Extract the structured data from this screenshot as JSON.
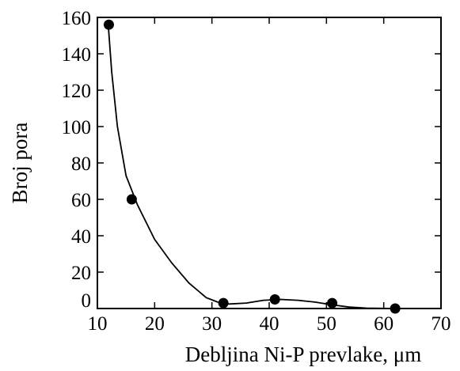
{
  "chart_data": {
    "type": "scatter",
    "title": "",
    "xlabel": "Debljina Ni-P prevlake, μm",
    "ylabel": "Broj pora",
    "xlim": [
      10,
      70
    ],
    "ylim": [
      0,
      160
    ],
    "x_ticks": [
      "10",
      "20",
      "30",
      "40",
      "50",
      "60",
      "70"
    ],
    "y_ticks": [
      "0",
      "20",
      "40",
      "60",
      "80",
      "100",
      "120",
      "140",
      "160"
    ],
    "grid": false,
    "legend": "none",
    "series": [
      {
        "values": [
          {
            "x": 12,
            "y": 156
          },
          {
            "x": 16,
            "y": 60
          },
          {
            "x": 32,
            "y": 3
          },
          {
            "x": 41,
            "y": 5
          },
          {
            "x": 51,
            "y": 3
          },
          {
            "x": 62,
            "y": 0
          }
        ]
      }
    ],
    "trend_curve": [
      {
        "x": 11.9,
        "y": 156
      },
      {
        "x": 12.5,
        "y": 130
      },
      {
        "x": 13.5,
        "y": 100
      },
      {
        "x": 15,
        "y": 73
      },
      {
        "x": 17,
        "y": 57
      },
      {
        "x": 20,
        "y": 38
      },
      {
        "x": 23,
        "y": 25
      },
      {
        "x": 26,
        "y": 14
      },
      {
        "x": 29,
        "y": 6
      },
      {
        "x": 31,
        "y": 3.5
      },
      {
        "x": 33,
        "y": 2.5
      },
      {
        "x": 36,
        "y": 3
      },
      {
        "x": 39,
        "y": 4.5
      },
      {
        "x": 42,
        "y": 5
      },
      {
        "x": 45,
        "y": 4.5
      },
      {
        "x": 48,
        "y": 3.5
      },
      {
        "x": 51,
        "y": 2
      },
      {
        "x": 54,
        "y": 0.8
      },
      {
        "x": 57,
        "y": 0.2
      },
      {
        "x": 62,
        "y": 0
      }
    ],
    "colors": {
      "marker": "#000000",
      "line": "#000000",
      "axis": "#000000"
    }
  }
}
